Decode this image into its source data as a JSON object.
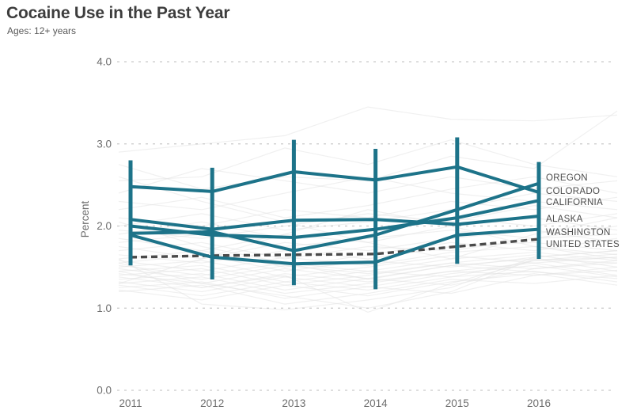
{
  "page": {
    "title": "Cocaine Use in the Past Year",
    "subtitle": "Ages: 12+ years"
  },
  "legend": {
    "items": [
      "OREGON",
      "COLORADO",
      "CALIFORNIA",
      "ALASKA",
      "WASHINGTON",
      "UNITED STATES"
    ]
  },
  "colors": {
    "highlight_teal": "#1d7389",
    "us_dashed": "#4a4a4a",
    "gridline": "#c9c9c9",
    "axis_text": "#6e6e6e",
    "background_line": "#e4e4e4",
    "legend_text": "#4b4b4b"
  },
  "chart_data": {
    "type": "line",
    "title": "Cocaine Use in the Past Year",
    "subtitle": "Ages: 12+ years",
    "xlabel": "",
    "ylabel": "Percent",
    "x": [
      2011,
      2012,
      2013,
      2014,
      2015,
      2016
    ],
    "xtick_labels": [
      "2011",
      "2012",
      "2013",
      "2014",
      "2015",
      "2016"
    ],
    "ylim": [
      0.0,
      4.0
    ],
    "yticks": [
      0.0,
      1.0,
      2.0,
      3.0,
      4.0
    ],
    "ytick_labels": [
      "0.0",
      "1.0",
      "2.0",
      "3.0",
      "4.0"
    ],
    "grid": "dashed-horizontal",
    "legend_position": "right-of-last-point",
    "series": [
      {
        "name": "OREGON",
        "values": [
          1.91,
          1.93,
          1.7,
          1.89,
          2.2,
          2.52
        ],
        "style": "solid"
      },
      {
        "name": "COLORADO",
        "values": [
          2.48,
          2.42,
          2.66,
          2.56,
          2.72,
          2.41
        ],
        "style": "solid"
      },
      {
        "name": "CALIFORNIA",
        "values": [
          2.0,
          1.89,
          1.86,
          1.96,
          2.1,
          2.31
        ],
        "style": "solid"
      },
      {
        "name": "ALASKA",
        "values": [
          2.08,
          1.96,
          2.07,
          2.08,
          2.02,
          2.12
        ],
        "style": "solid"
      },
      {
        "name": "WASHINGTON",
        "values": [
          1.89,
          1.62,
          1.54,
          1.56,
          1.89,
          1.96
        ],
        "style": "solid"
      },
      {
        "name": "UNITED STATES",
        "values": [
          1.62,
          1.64,
          1.65,
          1.66,
          1.75,
          1.84
        ],
        "style": "dashed"
      }
    ],
    "year_range_bars": [
      {
        "year": 2011,
        "min": 1.52,
        "max": 2.8
      },
      {
        "year": 2012,
        "min": 1.35,
        "max": 2.71
      },
      {
        "year": 2013,
        "min": 1.28,
        "max": 3.05
      },
      {
        "year": 2014,
        "min": 1.23,
        "max": 2.94
      },
      {
        "year": 2015,
        "min": 1.54,
        "max": 3.08
      },
      {
        "year": 2016,
        "min": 1.6,
        "max": 2.78
      }
    ],
    "background_series": [
      [
        2.9,
        3.0,
        3.1,
        3.45,
        3.3,
        3.28,
        3.35
      ],
      [
        2.55,
        2.6,
        2.95,
        2.75,
        3.05,
        2.75,
        2.6
      ],
      [
        2.75,
        2.45,
        2.6,
        2.55,
        2.85,
        2.7,
        3.4
      ],
      [
        2.4,
        2.7,
        2.55,
        2.4,
        2.6,
        2.45,
        2.55
      ],
      [
        2.3,
        2.2,
        2.4,
        2.6,
        2.4,
        2.3,
        2.2
      ],
      [
        2.2,
        2.35,
        2.1,
        2.25,
        2.45,
        2.6,
        2.4
      ],
      [
        2.1,
        2.0,
        2.2,
        2.1,
        2.3,
        2.2,
        2.35
      ],
      [
        2.0,
        2.15,
        1.95,
        2.05,
        2.2,
        2.4,
        2.3
      ],
      [
        1.95,
        1.85,
        2.0,
        2.15,
        2.05,
        2.25,
        2.1
      ],
      [
        1.9,
        2.05,
        1.85,
        1.95,
        2.1,
        2.0,
        2.15
      ],
      [
        1.85,
        1.7,
        1.9,
        1.8,
        2.0,
        2.1,
        1.95
      ],
      [
        1.8,
        1.9,
        1.75,
        1.85,
        1.95,
        1.85,
        2.0
      ],
      [
        1.75,
        1.6,
        1.8,
        1.7,
        1.85,
        1.95,
        1.8
      ],
      [
        1.7,
        1.8,
        1.6,
        1.75,
        1.7,
        1.85,
        1.9
      ],
      [
        1.65,
        1.55,
        1.7,
        1.6,
        1.75,
        1.8,
        1.7
      ],
      [
        1.6,
        1.7,
        1.5,
        1.65,
        1.8,
        1.7,
        1.85
      ],
      [
        1.58,
        1.45,
        1.62,
        1.52,
        1.68,
        1.75,
        1.65
      ],
      [
        1.55,
        1.65,
        1.45,
        1.58,
        1.5,
        1.62,
        1.7
      ],
      [
        1.52,
        1.4,
        1.55,
        1.45,
        1.6,
        1.68,
        1.58
      ],
      [
        1.5,
        1.58,
        1.38,
        1.5,
        1.64,
        1.55,
        1.62
      ],
      [
        1.48,
        1.35,
        1.52,
        1.42,
        1.55,
        1.65,
        1.5
      ],
      [
        1.45,
        1.52,
        1.32,
        1.45,
        1.38,
        1.58,
        1.66
      ],
      [
        1.42,
        1.3,
        1.48,
        1.36,
        1.52,
        1.6,
        1.45
      ],
      [
        1.4,
        1.48,
        1.28,
        1.4,
        1.55,
        1.48,
        1.58
      ],
      [
        1.38,
        1.25,
        1.42,
        1.32,
        1.45,
        1.55,
        1.4
      ],
      [
        1.35,
        1.42,
        1.22,
        1.36,
        1.28,
        1.48,
        1.55
      ],
      [
        1.32,
        1.2,
        1.38,
        1.26,
        1.42,
        1.52,
        1.38
      ],
      [
        1.3,
        1.38,
        1.18,
        1.3,
        1.45,
        1.4,
        1.5
      ],
      [
        1.28,
        1.15,
        1.32,
        1.22,
        1.38,
        1.45,
        1.32
      ],
      [
        1.25,
        1.32,
        1.12,
        1.26,
        1.18,
        1.4,
        1.46
      ],
      [
        1.22,
        1.1,
        1.28,
        1.15,
        1.32,
        1.42,
        1.28
      ],
      [
        1.2,
        1.28,
        1.05,
        1.18,
        1.35,
        1.3,
        1.4
      ],
      [
        1.55,
        1.3,
        1.15,
        1.0,
        1.2,
        1.6,
        1.55
      ],
      [
        1.6,
        1.05,
        0.98,
        1.1,
        1.25,
        1.62,
        1.7
      ],
      [
        1.45,
        1.25,
        1.4,
        0.95,
        1.3,
        1.58,
        1.62
      ],
      [
        2.6,
        2.3,
        2.05,
        1.8,
        1.6,
        1.9,
        2.1
      ],
      [
        1.3,
        1.6,
        1.9,
        2.2,
        2.0,
        1.75,
        1.6
      ],
      [
        2.05,
        1.75,
        1.55,
        1.35,
        1.52,
        1.44,
        1.36
      ]
    ]
  }
}
